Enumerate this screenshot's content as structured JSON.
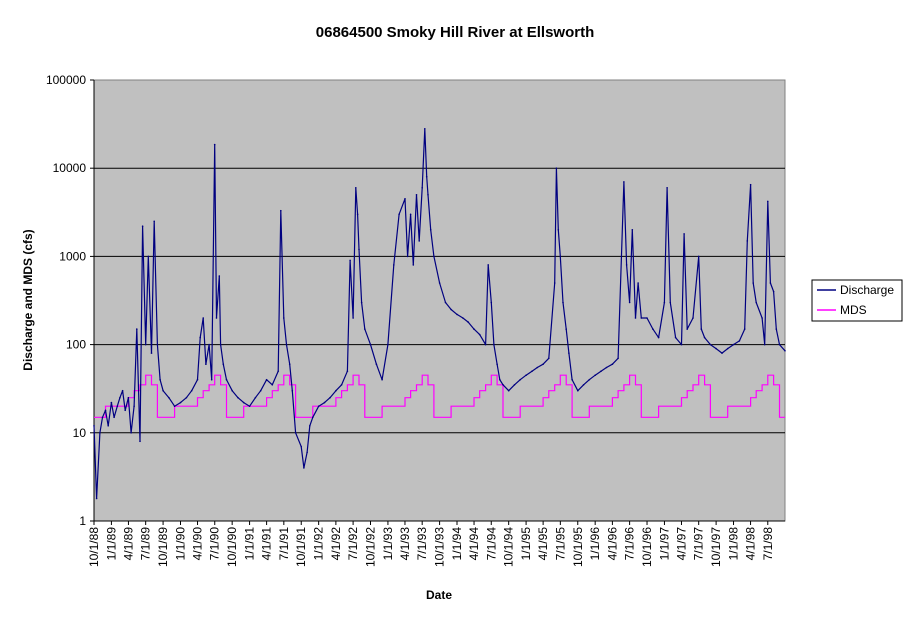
{
  "chart_data": {
    "type": "line",
    "title": "06864500 Smoky Hill River at Ellsworth",
    "xlabel": "Date",
    "ylabel": "Discharge and MDS (cfs)",
    "y_scale": "log",
    "ylim": [
      1,
      100000
    ],
    "y_ticks": [
      "1",
      "10",
      "100",
      "1000",
      "10000",
      "100000"
    ],
    "xlim": [
      "10/1/88",
      "9/30/98"
    ],
    "x_tick_labels": [
      "10/1/88",
      "1/1/89",
      "4/1/89",
      "7/1/89",
      "10/1/89",
      "1/1/90",
      "4/1/90",
      "7/1/90",
      "10/1/90",
      "1/1/91",
      "4/1/91",
      "7/1/91",
      "10/1/91",
      "1/1/92",
      "4/1/92",
      "7/1/92",
      "10/1/92",
      "1/1/93",
      "4/1/93",
      "7/1/93",
      "10/1/93",
      "1/1/94",
      "4/1/94",
      "7/1/94",
      "10/1/94",
      "1/1/95",
      "4/1/95",
      "7/1/95",
      "10/1/95",
      "1/1/96",
      "4/1/96",
      "7/1/96",
      "10/1/96",
      "1/1/97",
      "4/1/97",
      "7/1/97",
      "10/1/97",
      "1/1/98",
      "4/1/98",
      "7/1/98"
    ],
    "grid": "horizontal",
    "plot_background": "#c0c0c0",
    "legend_position": "right",
    "series": [
      {
        "name": "Discharge",
        "color": "#000080",
        "points": [
          [
            "10/1/88",
            12
          ],
          [
            "10/15/88",
            1.8
          ],
          [
            "11/1/88",
            10
          ],
          [
            "11/15/88",
            15
          ],
          [
            "12/1/88",
            18
          ],
          [
            "12/15/88",
            12
          ],
          [
            "1/1/89",
            22
          ],
          [
            "1/15/89",
            15
          ],
          [
            "2/1/89",
            20
          ],
          [
            "2/15/89",
            25
          ],
          [
            "3/1/89",
            30
          ],
          [
            "3/15/89",
            18
          ],
          [
            "4/1/89",
            25
          ],
          [
            "4/15/89",
            10
          ],
          [
            "5/1/89",
            20
          ],
          [
            "5/15/89",
            150
          ],
          [
            "6/1/89",
            8
          ],
          [
            "6/15/89",
            2200
          ],
          [
            "7/1/89",
            100
          ],
          [
            "7/15/89",
            1000
          ],
          [
            "8/1/89",
            80
          ],
          [
            "8/15/89",
            2500
          ],
          [
            "9/1/89",
            100
          ],
          [
            "9/15/89",
            40
          ],
          [
            "10/1/89",
            30
          ],
          [
            "11/1/89",
            25
          ],
          [
            "12/1/89",
            20
          ],
          [
            "1/1/90",
            22
          ],
          [
            "2/1/90",
            25
          ],
          [
            "3/1/90",
            30
          ],
          [
            "4/1/90",
            40
          ],
          [
            "4/15/90",
            120
          ],
          [
            "5/1/90",
            200
          ],
          [
            "5/15/90",
            60
          ],
          [
            "6/1/90",
            100
          ],
          [
            "6/15/90",
            40
          ],
          [
            "7/1/90",
            18500
          ],
          [
            "7/10/90",
            200
          ],
          [
            "7/25/90",
            600
          ],
          [
            "8/1/90",
            100
          ],
          [
            "8/15/90",
            60
          ],
          [
            "9/1/90",
            40
          ],
          [
            "10/1/90",
            30
          ],
          [
            "11/1/90",
            25
          ],
          [
            "12/1/90",
            22
          ],
          [
            "1/1/91",
            20
          ],
          [
            "2/1/91",
            25
          ],
          [
            "3/1/91",
            30
          ],
          [
            "4/1/91",
            40
          ],
          [
            "5/1/91",
            35
          ],
          [
            "6/1/91",
            50
          ],
          [
            "6/15/91",
            3300
          ],
          [
            "7/1/91",
            200
          ],
          [
            "7/15/91",
            100
          ],
          [
            "8/1/91",
            60
          ],
          [
            "8/15/91",
            30
          ],
          [
            "9/1/91",
            10
          ],
          [
            "10/1/91",
            7
          ],
          [
            "10/15/91",
            4
          ],
          [
            "11/1/91",
            6
          ],
          [
            "11/15/91",
            12
          ],
          [
            "12/1/91",
            15
          ],
          [
            "1/1/92",
            20
          ],
          [
            "2/1/92",
            22
          ],
          [
            "3/1/92",
            25
          ],
          [
            "4/1/92",
            30
          ],
          [
            "5/1/92",
            35
          ],
          [
            "6/1/92",
            50
          ],
          [
            "6/15/92",
            900
          ],
          [
            "7/1/92",
            200
          ],
          [
            "7/15/92",
            6000
          ],
          [
            "7/25/92",
            3000
          ],
          [
            "8/1/92",
            1200
          ],
          [
            "8/15/92",
            300
          ],
          [
            "9/1/92",
            150
          ],
          [
            "10/1/92",
            100
          ],
          [
            "11/1/92",
            60
          ],
          [
            "12/1/92",
            40
          ],
          [
            "1/1/93",
            100
          ],
          [
            "2/1/93",
            800
          ],
          [
            "3/1/93",
            3000
          ],
          [
            "4/1/93",
            4500
          ],
          [
            "4/15/93",
            1000
          ],
          [
            "5/1/93",
            3000
          ],
          [
            "5/15/93",
            800
          ],
          [
            "6/1/93",
            5000
          ],
          [
            "6/15/93",
            1500
          ],
          [
            "7/1/93",
            6000
          ],
          [
            "7/15/93",
            28000
          ],
          [
            "7/25/93",
            8000
          ],
          [
            "8/1/93",
            5000
          ],
          [
            "8/15/93",
            2000
          ],
          [
            "9/1/93",
            1000
          ],
          [
            "10/1/93",
            500
          ],
          [
            "11/1/93",
            300
          ],
          [
            "12/1/93",
            250
          ],
          [
            "1/1/94",
            220
          ],
          [
            "2/1/94",
            200
          ],
          [
            "3/1/94",
            180
          ],
          [
            "4/1/94",
            150
          ],
          [
            "5/1/94",
            130
          ],
          [
            "6/1/94",
            100
          ],
          [
            "6/15/94",
            800
          ],
          [
            "7/1/94",
            300
          ],
          [
            "7/15/94",
            100
          ],
          [
            "8/1/94",
            60
          ],
          [
            "8/15/94",
            40
          ],
          [
            "9/1/94",
            35
          ],
          [
            "10/1/94",
            30
          ],
          [
            "11/1/94",
            35
          ],
          [
            "12/1/94",
            40
          ],
          [
            "1/1/95",
            45
          ],
          [
            "2/1/95",
            50
          ],
          [
            "3/1/95",
            55
          ],
          [
            "4/1/95",
            60
          ],
          [
            "5/1/95",
            70
          ],
          [
            "6/1/95",
            500
          ],
          [
            "6/10/95",
            10000
          ],
          [
            "6/20/95",
            2000
          ],
          [
            "7/1/95",
            1000
          ],
          [
            "7/15/95",
            300
          ],
          [
            "8/1/95",
            150
          ],
          [
            "8/15/95",
            80
          ],
          [
            "9/1/95",
            40
          ],
          [
            "10/1/95",
            30
          ],
          [
            "11/1/95",
            35
          ],
          [
            "12/1/95",
            40
          ],
          [
            "1/1/96",
            45
          ],
          [
            "2/1/96",
            50
          ],
          [
            "3/1/96",
            55
          ],
          [
            "4/1/96",
            60
          ],
          [
            "5/1/96",
            70
          ],
          [
            "6/1/96",
            7000
          ],
          [
            "6/15/96",
            800
          ],
          [
            "7/1/96",
            300
          ],
          [
            "7/15/96",
            2000
          ],
          [
            "8/1/96",
            200
          ],
          [
            "8/15/96",
            500
          ],
          [
            "9/1/96",
            200
          ],
          [
            "10/1/96",
            200
          ],
          [
            "11/1/96",
            150
          ],
          [
            "12/1/96",
            120
          ],
          [
            "1/1/97",
            300
          ],
          [
            "1/15/97",
            6000
          ],
          [
            "2/1/97",
            300
          ],
          [
            "3/1/97",
            120
          ],
          [
            "4/1/97",
            100
          ],
          [
            "4/15/97",
            1800
          ],
          [
            "5/1/97",
            150
          ],
          [
            "6/1/97",
            200
          ],
          [
            "7/1/97",
            1000
          ],
          [
            "7/15/97",
            150
          ],
          [
            "8/1/97",
            120
          ],
          [
            "9/1/97",
            100
          ],
          [
            "10/1/97",
            90
          ],
          [
            "11/1/97",
            80
          ],
          [
            "12/1/97",
            90
          ],
          [
            "1/1/98",
            100
          ],
          [
            "2/1/98",
            110
          ],
          [
            "3/1/98",
            150
          ],
          [
            "3/15/98",
            1500
          ],
          [
            "4/1/98",
            6500
          ],
          [
            "4/15/98",
            500
          ],
          [
            "5/1/98",
            300
          ],
          [
            "6/1/98",
            200
          ],
          [
            "6/15/98",
            100
          ],
          [
            "7/1/98",
            4200
          ],
          [
            "7/15/98",
            500
          ],
          [
            "8/1/98",
            400
          ],
          [
            "8/15/98",
            150
          ],
          [
            "9/1/98",
            100
          ],
          [
            "9/30/98",
            85
          ]
        ]
      },
      {
        "name": "MDS",
        "color": "#ff00ff",
        "step": true,
        "annual_profile_by_month": [
          [
            "10",
            15
          ],
          [
            "11",
            15
          ],
          [
            "12",
            20
          ],
          [
            "1",
            20
          ],
          [
            "2",
            20
          ],
          [
            "3",
            20
          ],
          [
            "4",
            25
          ],
          [
            "5",
            30
          ],
          [
            "6",
            35
          ],
          [
            "7",
            45
          ],
          [
            "8",
            35
          ],
          [
            "9",
            15
          ]
        ]
      }
    ]
  }
}
